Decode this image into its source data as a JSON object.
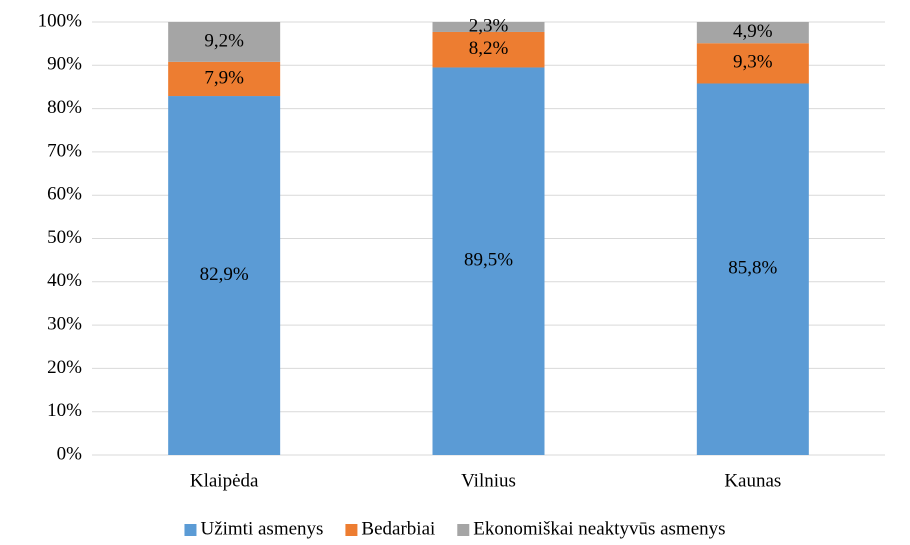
{
  "chart_data": {
    "type": "stacked_bar",
    "categories": [
      "Klaipėda",
      "Vilnius",
      "Kaunas"
    ],
    "series": [
      {
        "name": "Užimti asmenys",
        "color": "#5b9bd5",
        "values": [
          82.9,
          89.5,
          85.8
        ],
        "value_labels": [
          "82,9%",
          "89,5%",
          "85,8%"
        ]
      },
      {
        "name": "Bedarbiai",
        "color": "#ed7d31",
        "values": [
          7.9,
          8.2,
          9.3
        ],
        "value_labels": [
          "7,9%",
          "8,2%",
          "9,3%"
        ]
      },
      {
        "name": "Ekonomiškai neaktyvūs asmenys",
        "color": "#a5a5a5",
        "values": [
          9.2,
          2.3,
          4.9
        ],
        "value_labels": [
          "9,2%",
          "2,3%",
          "4,9%"
        ]
      }
    ],
    "ylim": [
      0,
      100
    ],
    "yticks": [
      {
        "value": 0,
        "label": "0%"
      },
      {
        "value": 10,
        "label": "10%"
      },
      {
        "value": 20,
        "label": "20%"
      },
      {
        "value": 30,
        "label": "30%"
      },
      {
        "value": 40,
        "label": "40%"
      },
      {
        "value": 50,
        "label": "50%"
      },
      {
        "value": 60,
        "label": "60%"
      },
      {
        "value": 70,
        "label": "70%"
      },
      {
        "value": 80,
        "label": "80%"
      },
      {
        "value": 90,
        "label": "90%"
      },
      {
        "value": 100,
        "label": "100%"
      }
    ],
    "grid": true,
    "legend": "bottom"
  }
}
